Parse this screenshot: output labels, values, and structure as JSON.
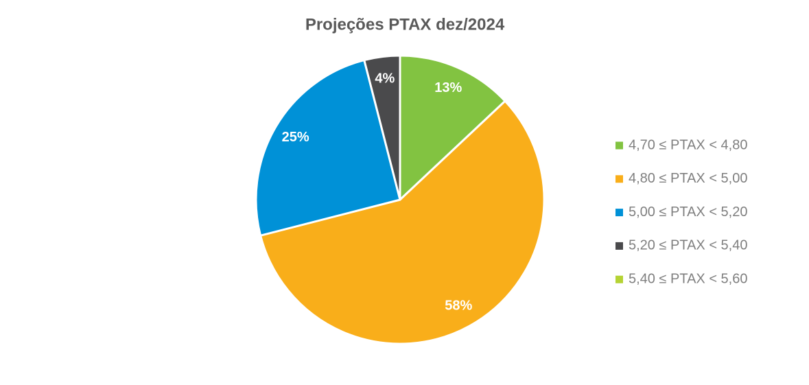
{
  "chart_data": {
    "type": "pie",
    "title": "Projeções PTAX dez/2024",
    "categories": [
      "4,70 ≤ PTAX < 4,80",
      "4,80 ≤ PTAX < 5,00",
      "5,00 ≤ PTAX < 5,20",
      "5,20 ≤ PTAX < 5,40",
      "5,40 ≤ PTAX < 5,60"
    ],
    "values": [
      13,
      58,
      25,
      4,
      0
    ],
    "value_labels": [
      "13%",
      "58%",
      "25%",
      "4%",
      null
    ],
    "colors": [
      "#82c341",
      "#f9ae1a",
      "#0091d7",
      "#4a4a4c",
      "#b5d334"
    ],
    "legend": "right"
  }
}
